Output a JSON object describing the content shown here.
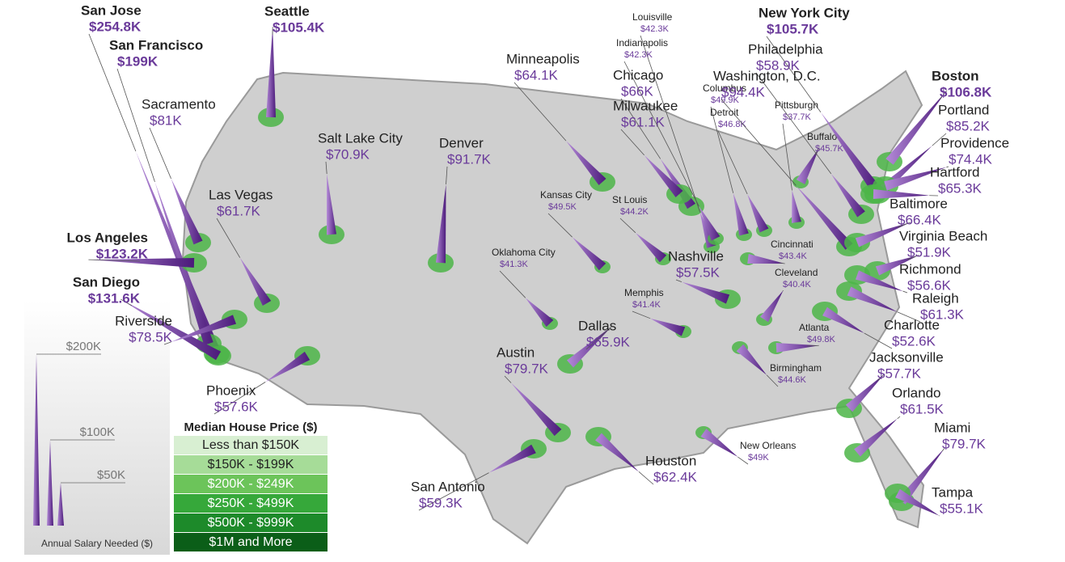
{
  "cities": [
    {
      "name": "San Jose",
      "salary": 254800,
      "salary_label": "$254.8K"
    },
    {
      "name": "San Francisco",
      "salary": 199000,
      "salary_label": "$199K"
    },
    {
      "name": "Seattle",
      "salary": 105400,
      "salary_label": "$105.4K"
    },
    {
      "name": "Sacramento",
      "salary": 81000,
      "salary_label": "$81K"
    },
    {
      "name": "Los Angeles",
      "salary": 123200,
      "salary_label": "$123.2K"
    },
    {
      "name": "San Diego",
      "salary": 131600,
      "salary_label": "$131.6K"
    },
    {
      "name": "Riverside",
      "salary": 78500,
      "salary_label": "$78.5K"
    },
    {
      "name": "Las Vegas",
      "salary": 61700,
      "salary_label": "$61.7K"
    },
    {
      "name": "Salt Lake City",
      "salary": 70900,
      "salary_label": "$70.9K"
    },
    {
      "name": "Phoenix",
      "salary": 57600,
      "salary_label": "$57.6K"
    },
    {
      "name": "Denver",
      "salary": 91700,
      "salary_label": "$91.7K"
    },
    {
      "name": "Minneapolis",
      "salary": 64100,
      "salary_label": "$64.1K"
    },
    {
      "name": "Chicago",
      "salary": 66000,
      "salary_label": "$66K"
    },
    {
      "name": "Milwaukee",
      "salary": 61100,
      "salary_label": "$61.1K"
    },
    {
      "name": "Louisville",
      "salary": 42300,
      "salary_label": "$42.3K"
    },
    {
      "name": "Indianapolis",
      "salary": 42300,
      "salary_label": "$42.3K"
    },
    {
      "name": "Columbus",
      "salary": 49900,
      "salary_label": "$49.9K"
    },
    {
      "name": "Detroit",
      "salary": 46800,
      "salary_label": "$46.8K"
    },
    {
      "name": "Pittsburgh",
      "salary": 37700,
      "salary_label": "$37.7K"
    },
    {
      "name": "Buffalo",
      "salary": 45700,
      "salary_label": "$45.7K"
    },
    {
      "name": "Kansas City",
      "salary": 49500,
      "salary_label": "$49.5K"
    },
    {
      "name": "St Louis",
      "salary": 44200,
      "salary_label": "$44.2K"
    },
    {
      "name": "Oklahoma City",
      "salary": 41300,
      "salary_label": "$41.3K"
    },
    {
      "name": "Memphis",
      "salary": 41400,
      "salary_label": "$41.4K"
    },
    {
      "name": "Dallas",
      "salary": 65900,
      "salary_label": "$65.9K"
    },
    {
      "name": "Austin",
      "salary": 79700,
      "salary_label": "$79.7K"
    },
    {
      "name": "San Antonio",
      "salary": 59300,
      "salary_label": "$59.3K"
    },
    {
      "name": "Houston",
      "salary": 62400,
      "salary_label": "$62.4K"
    },
    {
      "name": "Nashville",
      "salary": 57500,
      "salary_label": "$57.5K"
    },
    {
      "name": "Cincinnati",
      "salary": 43400,
      "salary_label": "$43.4K"
    },
    {
      "name": "Cleveland",
      "salary": 40400,
      "salary_label": "$40.4K"
    },
    {
      "name": "Atlanta",
      "salary": 49800,
      "salary_label": "$49.8K"
    },
    {
      "name": "Birmingham",
      "salary": 44600,
      "salary_label": "$44.6K"
    },
    {
      "name": "New Orleans",
      "salary": 49000,
      "salary_label": "$49K"
    },
    {
      "name": "New York City",
      "salary": 105700,
      "salary_label": "$105.7K"
    },
    {
      "name": "Philadelphia",
      "salary": 58900,
      "salary_label": "$58.9K"
    },
    {
      "name": "Washington, D.C.",
      "salary": 94400,
      "salary_label": "$94.4K"
    },
    {
      "name": "Boston",
      "salary": 106800,
      "salary_label": "$106.8K"
    },
    {
      "name": "Portland",
      "salary": 85200,
      "salary_label": "$85.2K"
    },
    {
      "name": "Providence",
      "salary": 74400,
      "salary_label": "$74.4K"
    },
    {
      "name": "Hartford",
      "salary": 65300,
      "salary_label": "$65.3K"
    },
    {
      "name": "Baltimore",
      "salary": 66400,
      "salary_label": "$66.4K"
    },
    {
      "name": "Virginia Beach",
      "salary": 51900,
      "salary_label": "$51.9K"
    },
    {
      "name": "Richmond",
      "salary": 56600,
      "salary_label": "$56.6K"
    },
    {
      "name": "Raleigh",
      "salary": 61300,
      "salary_label": "$61.3K"
    },
    {
      "name": "Charlotte",
      "salary": 52600,
      "salary_label": "$52.6K"
    },
    {
      "name": "Jacksonville",
      "salary": 57700,
      "salary_label": "$57.7K"
    },
    {
      "name": "Orlando",
      "salary": 61500,
      "salary_label": "$61.5K"
    },
    {
      "name": "Miami",
      "salary": 79700,
      "salary_label": "$79.7K"
    },
    {
      "name": "Tampa",
      "salary": 55100,
      "salary_label": "$55.1K"
    }
  ],
  "salary_scale": {
    "title": "Annual Salary Needed ($)",
    "ylim": [
      0,
      250000
    ],
    "yticks": [
      {
        "value": 200000,
        "label": "$200K"
      },
      {
        "value": 100000,
        "label": "$100K"
      },
      {
        "value": 50000,
        "label": "$50K"
      }
    ]
  },
  "house_price_legend": {
    "title": "Median House Price ($)",
    "items": [
      {
        "label": "Less than $150K",
        "color": "#d8efd2"
      },
      {
        "label": "$150K - $199K",
        "color": "#a6dc98"
      },
      {
        "label": "$200K - $249K",
        "color": "#6cc45a"
      },
      {
        "label": "$250K - $499K",
        "color": "#36a83a"
      },
      {
        "label": "$500K - $999K",
        "color": "#1d8a2a"
      },
      {
        "label": "$1M and More",
        "color": "#0b5e18"
      }
    ]
  }
}
